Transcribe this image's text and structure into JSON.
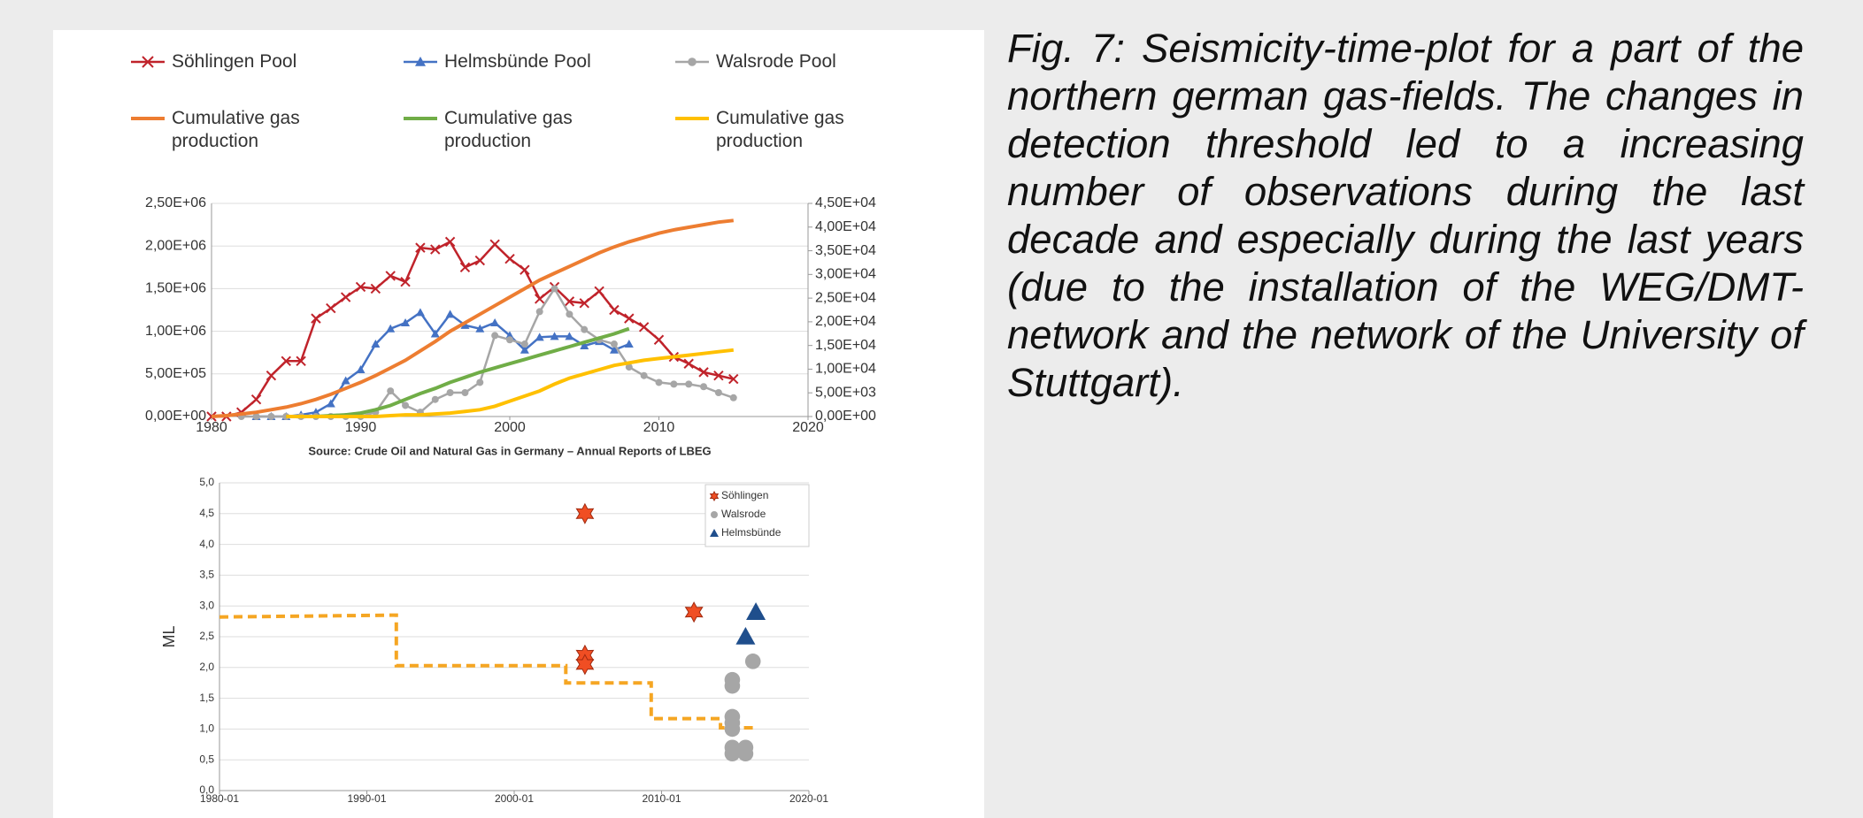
{
  "chart_data": [
    {
      "type": "line",
      "x": [
        1980,
        1981,
        1982,
        1983,
        1984,
        1985,
        1986,
        1987,
        1988,
        1989,
        1990,
        1991,
        1992,
        1993,
        1994,
        1995,
        1996,
        1997,
        1998,
        1999,
        2000,
        2001,
        2002,
        2003,
        2004,
        2005,
        2006,
        2007,
        2008,
        2009,
        2010,
        2011,
        2012,
        2013,
        2014,
        2015
      ],
      "series": [
        {
          "name": "Söhlingen Pool",
          "color": "#c0232b",
          "marker": "x",
          "values": [
            0,
            0,
            50000,
            200000,
            480000,
            650000,
            650000,
            1150000,
            1270000,
            1400000,
            1520000,
            1500000,
            1650000,
            1580000,
            1980000,
            1960000,
            2050000,
            1750000,
            1830000,
            2020000,
            1850000,
            1720000,
            1380000,
            1520000,
            1350000,
            1330000,
            1470000,
            1250000,
            1150000,
            1050000,
            900000,
            700000,
            620000,
            520000,
            480000,
            440000
          ]
        },
        {
          "name": "Helmsbünde Pool",
          "color": "#4472c4",
          "marker": "triangle",
          "values": [
            null,
            null,
            null,
            0,
            0,
            0,
            20000,
            50000,
            150000,
            420000,
            550000,
            850000,
            1030000,
            1100000,
            1220000,
            970000,
            1200000,
            1070000,
            1030000,
            1100000,
            950000,
            780000,
            930000,
            940000,
            940000,
            830000,
            880000,
            780000,
            850000,
            null,
            null,
            null,
            null,
            null,
            null,
            null
          ]
        },
        {
          "name": "Walsrode Pool",
          "color": "#a6a6a6",
          "marker": "circle",
          "values": [
            null,
            null,
            0,
            0,
            0,
            0,
            0,
            0,
            0,
            0,
            0,
            50000,
            300000,
            130000,
            50000,
            200000,
            280000,
            280000,
            400000,
            950000,
            900000,
            850000,
            1230000,
            1500000,
            1200000,
            1020000,
            900000,
            850000,
            580000,
            480000,
            400000,
            380000,
            380000,
            350000,
            280000,
            220000
          ]
        },
        {
          "name": "Cumulative gas production",
          "color": "#ed7d31",
          "values": [
            0,
            10000,
            30000,
            50000,
            80000,
            110000,
            150000,
            200000,
            260000,
            330000,
            400000,
            480000,
            570000,
            660000,
            770000,
            880000,
            1000000,
            1100000,
            1200000,
            1300000,
            1400000,
            1500000,
            1600000,
            1680000,
            1760000,
            1840000,
            1920000,
            1990000,
            2050000,
            2100000,
            2150000,
            2190000,
            2220000,
            2250000,
            2280000,
            2300000
          ]
        },
        {
          "name": "Cumulative gas production",
          "color": "#70ad47",
          "values": [
            null,
            null,
            null,
            null,
            null,
            0,
            0,
            0,
            10000,
            20000,
            40000,
            80000,
            130000,
            200000,
            270000,
            330000,
            400000,
            460000,
            520000,
            570000,
            620000,
            670000,
            720000,
            770000,
            820000,
            870000,
            920000,
            970000,
            1030000,
            null,
            null,
            null,
            null,
            null,
            null,
            null
          ]
        },
        {
          "name": "Cumulative gas production",
          "color": "#ffc000",
          "values": [
            null,
            null,
            null,
            null,
            null,
            0,
            0,
            0,
            0,
            0,
            0,
            0,
            10000,
            20000,
            20000,
            30000,
            40000,
            60000,
            80000,
            120000,
            180000,
            240000,
            300000,
            380000,
            450000,
            500000,
            550000,
            600000,
            630000,
            660000,
            680000,
            700000,
            720000,
            740000,
            760000,
            780000
          ]
        }
      ],
      "xlim": [
        1980,
        2020
      ],
      "xticks": [
        1980,
        1990,
        2000,
        2010,
        2020
      ],
      "ylim": [
        0,
        2500000
      ],
      "yticks": [
        {
          "value": 0,
          "label": "0,00E+00"
        },
        {
          "value": 500000,
          "label": "5,00E+05"
        },
        {
          "value": 1000000,
          "label": "1,00E+06"
        },
        {
          "value": 1500000,
          "label": "1,50E+06"
        },
        {
          "value": 2000000,
          "label": "2,00E+06"
        },
        {
          "value": 2500000,
          "label": "2,50E+06"
        }
      ],
      "y2lim": [
        0,
        45000
      ],
      "y2ticks": [
        {
          "value": 0,
          "label": "0,00E+00"
        },
        {
          "value": 5000,
          "label": "5,00E+03"
        },
        {
          "value": 10000,
          "label": "1,00E+04"
        },
        {
          "value": 15000,
          "label": "1,50E+04"
        },
        {
          "value": 20000,
          "label": "2,00E+04"
        },
        {
          "value": 25000,
          "label": "2,50E+04"
        },
        {
          "value": 30000,
          "label": "3,00E+04"
        },
        {
          "value": 35000,
          "label": "3,50E+04"
        },
        {
          "value": 40000,
          "label": "4,00E+04"
        },
        {
          "value": 45000,
          "label": "4,50E+04"
        }
      ],
      "grid": true,
      "note": "Source: Crude Oil and Natural Gas in Germany – Annual Reports of LBEG"
    },
    {
      "type": "scatter",
      "ylabel": "ML",
      "series": [
        {
          "name": "Söhlingen",
          "color": "#f04e23",
          "marker": "star",
          "x": [
            2004.8,
            2004.8,
            2004.8,
            2012.2
          ],
          "values": [
            4.5,
            2.2,
            2.05,
            2.9
          ]
        },
        {
          "name": "Walsrode",
          "color": "#a6a6a6",
          "marker": "circle",
          "x": [
            2014.8,
            2014.8,
            2014.8,
            2014.8,
            2014.8,
            2014.8,
            2014.8,
            2015.7,
            2015.7,
            2016.2
          ],
          "values": [
            1.8,
            1.7,
            1.2,
            1.1,
            1.0,
            0.7,
            0.6,
            0.7,
            0.6,
            2.1
          ]
        },
        {
          "name": "Helmsbünde",
          "color": "#1f4e8c",
          "marker": "triangle",
          "x": [
            2015.7,
            2016.4
          ],
          "values": [
            2.5,
            2.9
          ]
        }
      ],
      "step_line": {
        "color": "#f5a623",
        "x": [
          1980,
          1992,
          1992,
          2003.5,
          2003.5,
          2009.3,
          2009.3,
          2014,
          2014,
          2016.5
        ],
        "values": [
          2.82,
          2.85,
          2.03,
          2.03,
          1.75,
          1.75,
          1.17,
          1.17,
          1.02,
          1.02
        ]
      },
      "xlim": [
        1980,
        2020
      ],
      "xticks": [
        {
          "value": 1980,
          "label": "1980-01"
        },
        {
          "value": 1990,
          "label": "1990-01"
        },
        {
          "value": 2000,
          "label": "2000-01"
        },
        {
          "value": 2010,
          "label": "2010-01"
        },
        {
          "value": 2020,
          "label": "2020-01"
        }
      ],
      "ylim": [
        0,
        5
      ],
      "yticks": [
        {
          "value": 0,
          "label": "0,0"
        },
        {
          "value": 0.5,
          "label": "0,5"
        },
        {
          "value": 1,
          "label": "1,0"
        },
        {
          "value": 1.5,
          "label": "1,5"
        },
        {
          "value": 2,
          "label": "2,0"
        },
        {
          "value": 2.5,
          "label": "2,5"
        },
        {
          "value": 3,
          "label": "3,0"
        },
        {
          "value": 3.5,
          "label": "3,5"
        },
        {
          "value": 4,
          "label": "4,0"
        },
        {
          "value": 4.5,
          "label": "4,5"
        },
        {
          "value": 5,
          "label": "5,0"
        }
      ],
      "grid": true
    }
  ],
  "caption": "Fig. 7: Seismicity-time-plot for a part of the northern german gas-fields. The changes in detection threshold led to a increasing number of observations during the last decade and especially during the last years (due to the installation of the WEG/DMT-network and the network of the University of Stuttgart)."
}
